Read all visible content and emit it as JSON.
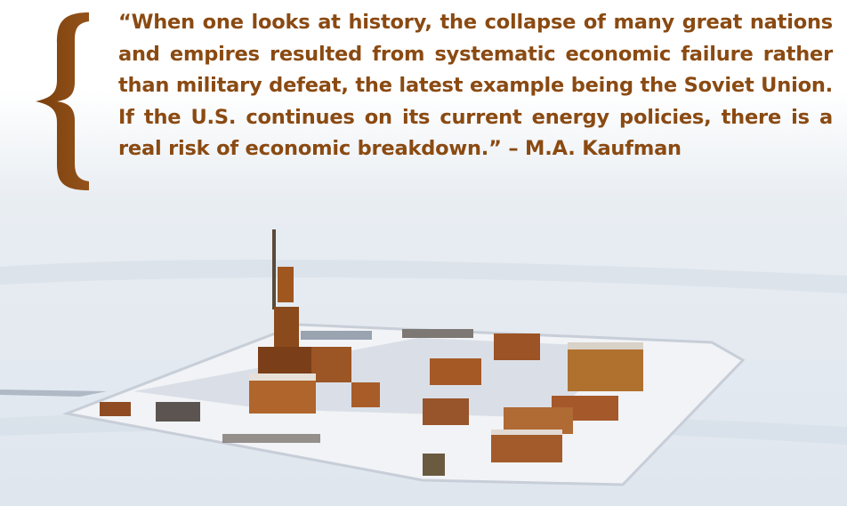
{
  "quote": {
    "text": "“When one looks at history, the collapse of many great nations and empires resulted from systematic economic failure rather than military defeat, the latest example being the Soviet Union. If the U.S. continues on its current energy policies, there is a real risk of economic breakdown.”",
    "attribution": "– M.A. Kaufman"
  }
}
